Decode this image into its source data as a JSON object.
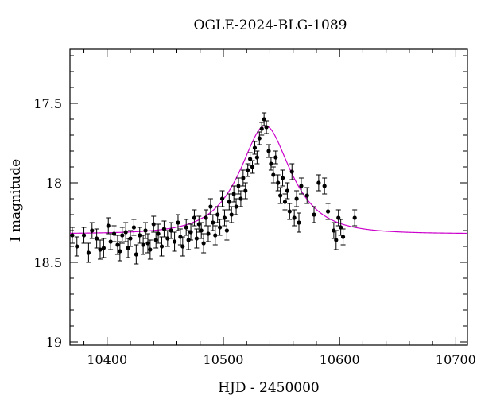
{
  "chart_data": {
    "type": "scatter",
    "title": "OGLE-2024-BLG-1089",
    "xlabel": "HJD - 2450000",
    "ylabel": "I magnitude",
    "xlim": [
      10368,
      10710
    ],
    "ylim": [
      19.02,
      17.16
    ],
    "y_inverted": true,
    "x_ticks": [
      10400,
      10500,
      10600,
      10700
    ],
    "y_ticks": [
      17.5,
      18,
      18.5,
      19
    ],
    "y_tick_labels": [
      "17.5",
      "18",
      "18.5",
      "19"
    ],
    "grid": false,
    "legend": "none",
    "colors": {
      "points": "#000000",
      "model": "#cc00cc"
    },
    "series": [
      {
        "type": "scatter-errorbar",
        "points": [
          {
            "x": 10370,
            "y": 18.33,
            "err": 0.05
          },
          {
            "x": 10374,
            "y": 18.4,
            "err": 0.06
          },
          {
            "x": 10380,
            "y": 18.33,
            "err": 0.05
          },
          {
            "x": 10384,
            "y": 18.44,
            "err": 0.06
          },
          {
            "x": 10387,
            "y": 18.3,
            "err": 0.05
          },
          {
            "x": 10391,
            "y": 18.35,
            "err": 0.06
          },
          {
            "x": 10394,
            "y": 18.42,
            "err": 0.06
          },
          {
            "x": 10397,
            "y": 18.41,
            "err": 0.06
          },
          {
            "x": 10401,
            "y": 18.27,
            "err": 0.05
          },
          {
            "x": 10403,
            "y": 18.37,
            "err": 0.05
          },
          {
            "x": 10406,
            "y": 18.32,
            "err": 0.05
          },
          {
            "x": 10409,
            "y": 18.39,
            "err": 0.06
          },
          {
            "x": 10411,
            "y": 18.43,
            "err": 0.06
          },
          {
            "x": 10413,
            "y": 18.33,
            "err": 0.05
          },
          {
            "x": 10416,
            "y": 18.31,
            "err": 0.06
          },
          {
            "x": 10418,
            "y": 18.41,
            "err": 0.06
          },
          {
            "x": 10420,
            "y": 18.35,
            "err": 0.05
          },
          {
            "x": 10423,
            "y": 18.28,
            "err": 0.05
          },
          {
            "x": 10425,
            "y": 18.45,
            "err": 0.06
          },
          {
            "x": 10428,
            "y": 18.33,
            "err": 0.05
          },
          {
            "x": 10431,
            "y": 18.39,
            "err": 0.06
          },
          {
            "x": 10433,
            "y": 18.3,
            "err": 0.05
          },
          {
            "x": 10435,
            "y": 18.38,
            "err": 0.06
          },
          {
            "x": 10437,
            "y": 18.42,
            "err": 0.06
          },
          {
            "x": 10440,
            "y": 18.26,
            "err": 0.05
          },
          {
            "x": 10442,
            "y": 18.36,
            "err": 0.05
          },
          {
            "x": 10444,
            "y": 18.32,
            "err": 0.06
          },
          {
            "x": 10447,
            "y": 18.4,
            "err": 0.06
          },
          {
            "x": 10449,
            "y": 18.29,
            "err": 0.05
          },
          {
            "x": 10452,
            "y": 18.35,
            "err": 0.05
          },
          {
            "x": 10455,
            "y": 18.3,
            "err": 0.05
          },
          {
            "x": 10458,
            "y": 18.37,
            "err": 0.06
          },
          {
            "x": 10461,
            "y": 18.25,
            "err": 0.05
          },
          {
            "x": 10463,
            "y": 18.34,
            "err": 0.05
          },
          {
            "x": 10465,
            "y": 18.4,
            "err": 0.06
          },
          {
            "x": 10468,
            "y": 18.28,
            "err": 0.05
          },
          {
            "x": 10470,
            "y": 18.36,
            "err": 0.06
          },
          {
            "x": 10472,
            "y": 18.31,
            "err": 0.05
          },
          {
            "x": 10475,
            "y": 18.22,
            "err": 0.05
          },
          {
            "x": 10477,
            "y": 18.35,
            "err": 0.06
          },
          {
            "x": 10479,
            "y": 18.26,
            "err": 0.05
          },
          {
            "x": 10481,
            "y": 18.3,
            "err": 0.05
          },
          {
            "x": 10483,
            "y": 18.38,
            "err": 0.06
          },
          {
            "x": 10485,
            "y": 18.22,
            "err": 0.05
          },
          {
            "x": 10487,
            "y": 18.32,
            "err": 0.05
          },
          {
            "x": 10489,
            "y": 18.15,
            "err": 0.05
          },
          {
            "x": 10491,
            "y": 18.25,
            "err": 0.05
          },
          {
            "x": 10493,
            "y": 18.33,
            "err": 0.06
          },
          {
            "x": 10495,
            "y": 18.2,
            "err": 0.05
          },
          {
            "x": 10497,
            "y": 18.28,
            "err": 0.05
          },
          {
            "x": 10499,
            "y": 18.1,
            "err": 0.05
          },
          {
            "x": 10501,
            "y": 18.22,
            "err": 0.05
          },
          {
            "x": 10503,
            "y": 18.3,
            "err": 0.06
          },
          {
            "x": 10505,
            "y": 18.12,
            "err": 0.05
          },
          {
            "x": 10507,
            "y": 18.2,
            "err": 0.05
          },
          {
            "x": 10509,
            "y": 18.07,
            "err": 0.05
          },
          {
            "x": 10511,
            "y": 18.15,
            "err": 0.05
          },
          {
            "x": 10513,
            "y": 18.02,
            "err": 0.05
          },
          {
            "x": 10515,
            "y": 18.1,
            "err": 0.05
          },
          {
            "x": 10517,
            "y": 17.97,
            "err": 0.05
          },
          {
            "x": 10519,
            "y": 18.05,
            "err": 0.05
          },
          {
            "x": 10521,
            "y": 17.92,
            "err": 0.04
          },
          {
            "x": 10523,
            "y": 17.85,
            "err": 0.04
          },
          {
            "x": 10525,
            "y": 17.9,
            "err": 0.04
          },
          {
            "x": 10527,
            "y": 17.78,
            "err": 0.04
          },
          {
            "x": 10529,
            "y": 17.84,
            "err": 0.04
          },
          {
            "x": 10531,
            "y": 17.72,
            "err": 0.04
          },
          {
            "x": 10533,
            "y": 17.66,
            "err": 0.04
          },
          {
            "x": 10535,
            "y": 17.6,
            "err": 0.04
          },
          {
            "x": 10537,
            "y": 17.65,
            "err": 0.04
          },
          {
            "x": 10539,
            "y": 17.8,
            "err": 0.04
          },
          {
            "x": 10541,
            "y": 17.88,
            "err": 0.04
          },
          {
            "x": 10543,
            "y": 17.95,
            "err": 0.05
          },
          {
            "x": 10545,
            "y": 17.84,
            "err": 0.04
          },
          {
            "x": 10547,
            "y": 18.0,
            "err": 0.05
          },
          {
            "x": 10549,
            "y": 18.08,
            "err": 0.05
          },
          {
            "x": 10551,
            "y": 17.97,
            "err": 0.05
          },
          {
            "x": 10553,
            "y": 18.12,
            "err": 0.05
          },
          {
            "x": 10555,
            "y": 18.05,
            "err": 0.05
          },
          {
            "x": 10557,
            "y": 18.18,
            "err": 0.05
          },
          {
            "x": 10559,
            "y": 17.93,
            "err": 0.05
          },
          {
            "x": 10561,
            "y": 18.22,
            "err": 0.05
          },
          {
            "x": 10563,
            "y": 18.1,
            "err": 0.05
          },
          {
            "x": 10565,
            "y": 18.25,
            "err": 0.06
          },
          {
            "x": 10567,
            "y": 18.02,
            "err": 0.05
          },
          {
            "x": 10572,
            "y": 18.08,
            "err": 0.05
          },
          {
            "x": 10578,
            "y": 18.2,
            "err": 0.05
          },
          {
            "x": 10582,
            "y": 18.0,
            "err": 0.05
          },
          {
            "x": 10587,
            "y": 18.02,
            "err": 0.05
          },
          {
            "x": 10590,
            "y": 18.18,
            "err": 0.05
          },
          {
            "x": 10595,
            "y": 18.3,
            "err": 0.05
          },
          {
            "x": 10597,
            "y": 18.36,
            "err": 0.06
          },
          {
            "x": 10599,
            "y": 18.22,
            "err": 0.05
          },
          {
            "x": 10601,
            "y": 18.28,
            "err": 0.05
          },
          {
            "x": 10603,
            "y": 18.34,
            "err": 0.05
          },
          {
            "x": 10613,
            "y": 18.22,
            "err": 0.05
          }
        ]
      },
      {
        "type": "model-line",
        "peak_x": 10536,
        "peak_y": 17.64,
        "baseline_y": 18.32
      }
    ]
  }
}
